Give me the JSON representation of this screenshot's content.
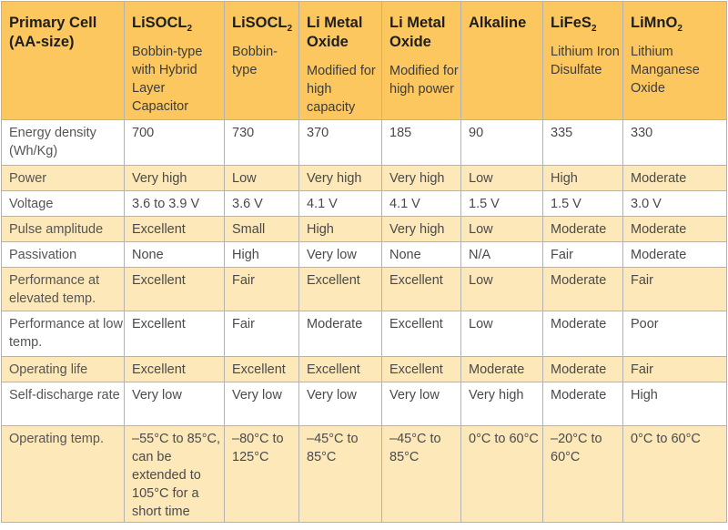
{
  "header": {
    "corner": "Primary Cell (AA-size)",
    "columns": [
      {
        "title": "LiSOCL",
        "sub": "2",
        "desc": "Bobbin-type with Hybrid Layer Capacitor"
      },
      {
        "title": "LiSOCL",
        "sub": "2",
        "desc": "Bobbin-type"
      },
      {
        "title": "Li Metal Oxide",
        "sub": "",
        "desc": "Modified for high capacity"
      },
      {
        "title": "Li Metal Oxide",
        "sub": "",
        "desc": "Modified for high power"
      },
      {
        "title": "Alkaline",
        "sub": "",
        "desc": ""
      },
      {
        "title": "LiFeS",
        "sub": "2",
        "desc": "Lithium Iron Disulfate"
      },
      {
        "title": "LiMnO",
        "sub": "2",
        "desc": "Lithium Manganese Oxide"
      }
    ]
  },
  "rows": [
    {
      "label": "Energy density (Wh/Kg)",
      "cells": [
        "700",
        "730",
        "370",
        "185",
        "90",
        "335",
        "330"
      ]
    },
    {
      "label": "Power",
      "cells": [
        "Very high",
        "Low",
        "Very high",
        "Very high",
        "Low",
        "High",
        "Moderate"
      ]
    },
    {
      "label": "Voltage",
      "cells": [
        "3.6 to 3.9 V",
        "3.6 V",
        "4.1 V",
        "4.1 V",
        "1.5 V",
        "1.5 V",
        "3.0 V"
      ]
    },
    {
      "label": "Pulse amplitude",
      "cells": [
        "Excellent",
        "Small",
        "High",
        "Very high",
        "Low",
        "Moderate",
        "Moderate"
      ]
    },
    {
      "label": "Passivation",
      "cells": [
        "None",
        "High",
        "Very low",
        "None",
        "N/A",
        "Fair",
        "Moderate"
      ]
    },
    {
      "label": "Performance at elevated temp.",
      "cells": [
        "Excellent",
        "Fair",
        "Excellent",
        "Excellent",
        "Low",
        "Moderate",
        "Fair"
      ]
    },
    {
      "label": "Performance at low temp.",
      "cells": [
        "Excellent",
        "Fair",
        "Moderate",
        "Excellent",
        "Low",
        "Moderate",
        "Poor"
      ]
    },
    {
      "label": "Operating life",
      "cells": [
        "Excellent",
        "Excellent",
        "Excellent",
        "Excellent",
        "Moderate",
        "Moderate",
        "Fair"
      ]
    },
    {
      "label": "Self-discharge rate",
      "cells": [
        "Very low",
        "Very low",
        "Very low",
        "Very low",
        "Very high",
        "Moderate",
        "High"
      ]
    },
    {
      "label": "Operating temp.",
      "cells": [
        "–55°C to 85°C, can be extended to 105°C for a short time",
        "–80°C to 125°C",
        "–45°C to 85°C",
        "–45°C to 85°C",
        "0°C to 60°C",
        "–20°C to 60°C",
        "0°C to 60°C"
      ]
    }
  ],
  "colors": {
    "header_bg": "#fcc75e",
    "stripe_bg": "#fde8b9",
    "border": "#b3b3b3"
  }
}
